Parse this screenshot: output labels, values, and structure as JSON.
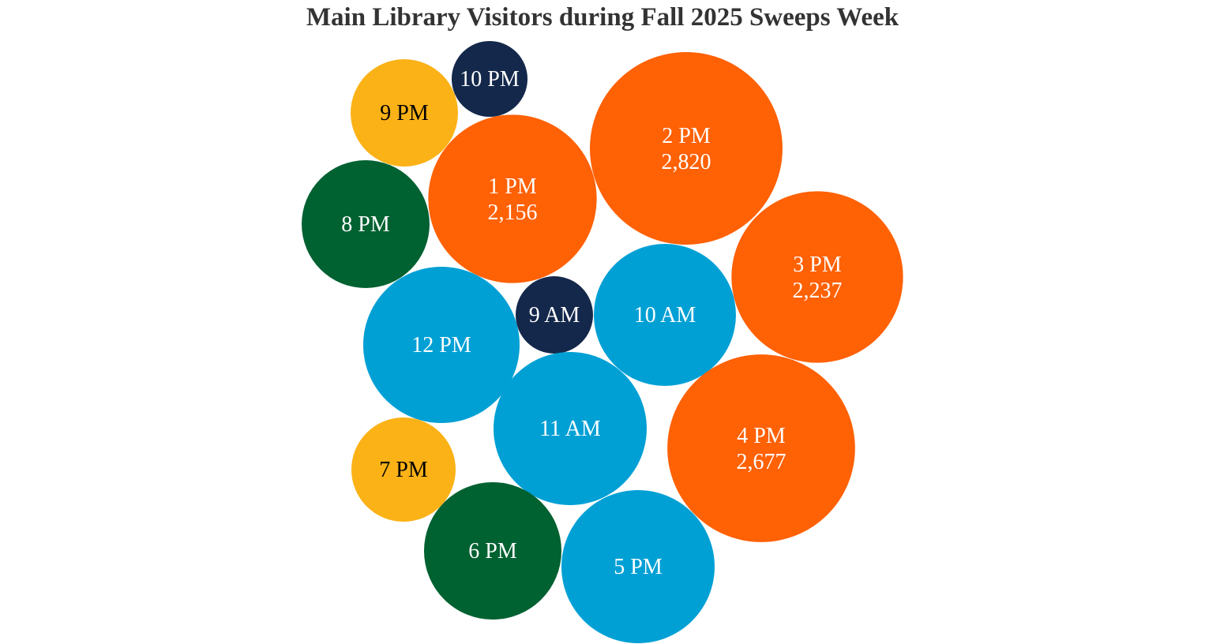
{
  "chart_data": {
    "type": "bubble",
    "title": "Main Library Visitors during Fall 2025 Sweeps Week",
    "note": "values without visible labels are estimated from bubble area",
    "colors": {
      "orange": "#FF6105",
      "blue": "#00A0D5",
      "navy": "#14284B",
      "green": "#006131",
      "yellow": "#FBB217"
    },
    "bubbles": [
      {
        "label": "10 PM",
        "value": 437,
        "color": "navy"
      },
      {
        "label": "9 PM",
        "value": 876,
        "color": "yellow"
      },
      {
        "label": "2 PM",
        "value": 2820,
        "value_label": "2,820",
        "color": "orange"
      },
      {
        "label": "1 PM",
        "value": 2156,
        "value_label": "2,156",
        "color": "orange"
      },
      {
        "label": "8 PM",
        "value": 1243,
        "color": "green"
      },
      {
        "label": "3 PM",
        "value": 2237,
        "value_label": "2,237",
        "color": "orange"
      },
      {
        "label": "12 PM",
        "value": 1858,
        "color": "blue"
      },
      {
        "label": "9 AM",
        "value": 455,
        "color": "navy"
      },
      {
        "label": "10 AM",
        "value": 1535,
        "color": "blue"
      },
      {
        "label": "11 AM",
        "value": 1783,
        "color": "blue"
      },
      {
        "label": "4 PM",
        "value": 2677,
        "value_label": "2,677",
        "color": "orange"
      },
      {
        "label": "7 PM",
        "value": 826,
        "color": "yellow"
      },
      {
        "label": "6 PM",
        "value": 1435,
        "color": "green"
      },
      {
        "label": "5 PM",
        "value": 1783,
        "color": "blue"
      }
    ]
  }
}
